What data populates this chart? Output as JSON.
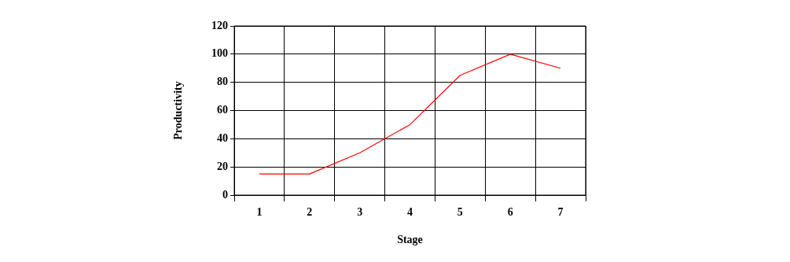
{
  "chart_data": {
    "type": "line",
    "xlabel": "Stage",
    "ylabel": "Productivity",
    "categories": [
      "1",
      "2",
      "3",
      "4",
      "5",
      "6",
      "7"
    ],
    "series": [
      {
        "color": "#ff0000",
        "values": [
          15,
          15,
          30,
          50,
          85,
          100,
          90
        ]
      }
    ],
    "ylim": [
      0,
      120
    ],
    "yticks": [
      0,
      20,
      40,
      60,
      80,
      100,
      120
    ],
    "grid": true,
    "legend": false,
    "marker": "none",
    "line_style": "solid"
  }
}
